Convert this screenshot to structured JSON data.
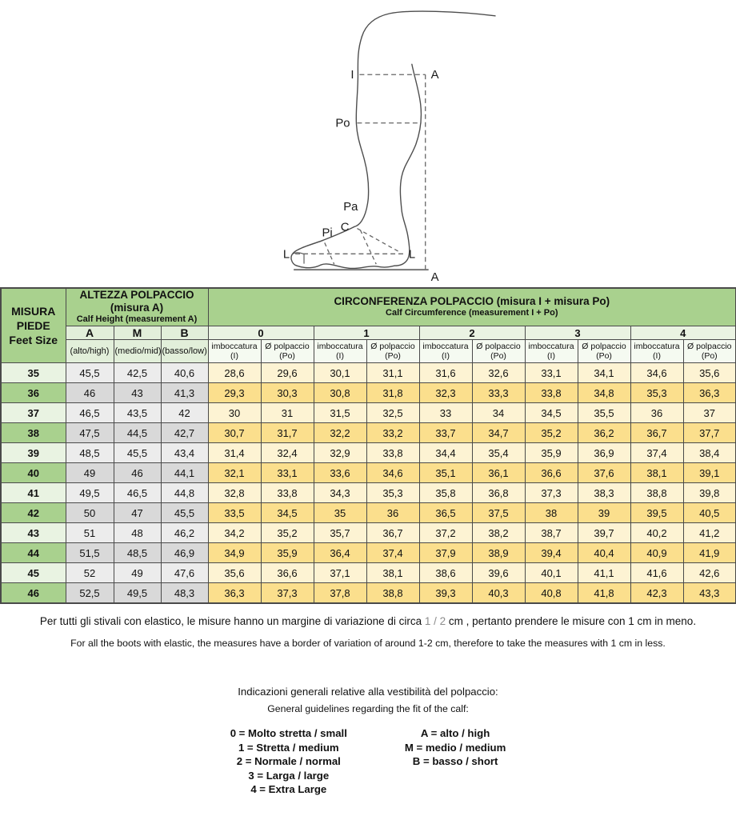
{
  "diagram": {
    "labels": {
      "i": "I",
      "a_top": "A",
      "po": "Po",
      "pa": "Pa",
      "c": "C",
      "pi": "Pi",
      "l_left": "L",
      "l_right": "L",
      "a_bottom": "A"
    }
  },
  "table": {
    "feet_size": {
      "it_line1": "MISURA",
      "it_line2": "PIEDE",
      "en": "Feet Size"
    },
    "calf_height": {
      "it": "ALTEZZA POLPACCIO",
      "it2": "(misura A)",
      "en": "Calf Height (measurement A)"
    },
    "calf_circumference": {
      "it": "CIRCONFERENZA POLPACCIO  (misura I + misura Po)",
      "en": "Calf Circumference (measurement I + Po)"
    },
    "height_columns": [
      {
        "label": "A",
        "sub": "(alto/high)"
      },
      {
        "label": "M",
        "sub": "(medio/mid)"
      },
      {
        "label": "B",
        "sub": "(basso/low)"
      }
    ],
    "circumference_groups": [
      "0",
      "1",
      "2",
      "3",
      "4"
    ],
    "circumference_subcolumns": [
      {
        "line1": "imboccatura",
        "line2": "(I)"
      },
      {
        "line1": "Ø polpaccio",
        "line2": "(Po)"
      }
    ],
    "rows": [
      {
        "size": "35",
        "height": [
          "45,5",
          "42,5",
          "40,6"
        ],
        "circumference": [
          "28,6",
          "29,6",
          "30,1",
          "31,1",
          "31,6",
          "32,6",
          "33,1",
          "34,1",
          "34,6",
          "35,6"
        ]
      },
      {
        "size": "36",
        "height": [
          "46",
          "43",
          "41,3"
        ],
        "circumference": [
          "29,3",
          "30,3",
          "30,8",
          "31,8",
          "32,3",
          "33,3",
          "33,8",
          "34,8",
          "35,3",
          "36,3"
        ]
      },
      {
        "size": "37",
        "height": [
          "46,5",
          "43,5",
          "42"
        ],
        "circumference": [
          "30",
          "31",
          "31,5",
          "32,5",
          "33",
          "34",
          "34,5",
          "35,5",
          "36",
          "37"
        ]
      },
      {
        "size": "38",
        "height": [
          "47,5",
          "44,5",
          "42,7"
        ],
        "circumference": [
          "30,7",
          "31,7",
          "32,2",
          "33,2",
          "33,7",
          "34,7",
          "35,2",
          "36,2",
          "36,7",
          "37,7"
        ]
      },
      {
        "size": "39",
        "height": [
          "48,5",
          "45,5",
          "43,4"
        ],
        "circumference": [
          "31,4",
          "32,4",
          "32,9",
          "33,8",
          "34,4",
          "35,4",
          "35,9",
          "36,9",
          "37,4",
          "38,4"
        ]
      },
      {
        "size": "40",
        "height": [
          "49",
          "46",
          "44,1"
        ],
        "circumference": [
          "32,1",
          "33,1",
          "33,6",
          "34,6",
          "35,1",
          "36,1",
          "36,6",
          "37,6",
          "38,1",
          "39,1"
        ]
      },
      {
        "size": "41",
        "height": [
          "49,5",
          "46,5",
          "44,8"
        ],
        "circumference": [
          "32,8",
          "33,8",
          "34,3",
          "35,3",
          "35,8",
          "36,8",
          "37,3",
          "38,3",
          "38,8",
          "39,8"
        ]
      },
      {
        "size": "42",
        "height": [
          "50",
          "47",
          "45,5"
        ],
        "circumference": [
          "33,5",
          "34,5",
          "35",
          "36",
          "36,5",
          "37,5",
          "38",
          "39",
          "39,5",
          "40,5"
        ]
      },
      {
        "size": "43",
        "height": [
          "51",
          "48",
          "46,2"
        ],
        "circumference": [
          "34,2",
          "35,2",
          "35,7",
          "36,7",
          "37,2",
          "38,2",
          "38,7",
          "39,7",
          "40,2",
          "41,2"
        ]
      },
      {
        "size": "44",
        "height": [
          "51,5",
          "48,5",
          "46,9"
        ],
        "circumference": [
          "34,9",
          "35,9",
          "36,4",
          "37,4",
          "37,9",
          "38,9",
          "39,4",
          "40,4",
          "40,9",
          "41,9"
        ]
      },
      {
        "size": "45",
        "height": [
          "52",
          "49",
          "47,6"
        ],
        "circumference": [
          "35,6",
          "36,6",
          "37,1",
          "38,1",
          "38,6",
          "39,6",
          "40,1",
          "41,1",
          "41,6",
          "42,6"
        ]
      },
      {
        "size": "46",
        "height": [
          "52,5",
          "49,5",
          "48,3"
        ],
        "circumference": [
          "36,3",
          "37,3",
          "37,8",
          "38,8",
          "39,3",
          "40,3",
          "40,8",
          "41,8",
          "42,3",
          "43,3"
        ]
      }
    ]
  },
  "notes": {
    "it_part1": "Per tutti gli stivali con elastico, le misure hanno un margine di variazione di circa ",
    "it_highlight": "1 / 2",
    "it_part2": " cm , pertanto prendere le misure con 1 cm in meno.",
    "en": "For all the boots with elastic, the measures have a border of variation of around 1-2 cm, therefore to take the measures with 1 cm in less."
  },
  "guidelines": {
    "heading_it": "Indicazioni generali relative alla vestibilità del polpaccio:",
    "heading_en": "General guidelines regarding the fit of the calf:",
    "width_legend": [
      "0 = Molto stretta / small",
      "1 = Stretta / medium",
      "2 = Normale / normal",
      "3 = Larga / large",
      "4 = Extra Large"
    ],
    "height_legend": [
      "A = alto / high",
      "M = medio / medium",
      "B = basso / short"
    ]
  },
  "colors": {
    "header-green": "#a9d18e",
    "light-green": "#e2efda",
    "group-green": "#eaf3e2",
    "subcol-green": "#f5faf1",
    "row-green-light": "#e9f3e2",
    "row-green-dark": "#a9d18e",
    "gray-light": "#ececec",
    "gray-dark": "#d9d9d9",
    "yellow-light": "#fdf3d3",
    "yellow-dark": "#fbdf8d",
    "border": "#4a4a4a",
    "note-highlight": "#8c8c8c"
  }
}
